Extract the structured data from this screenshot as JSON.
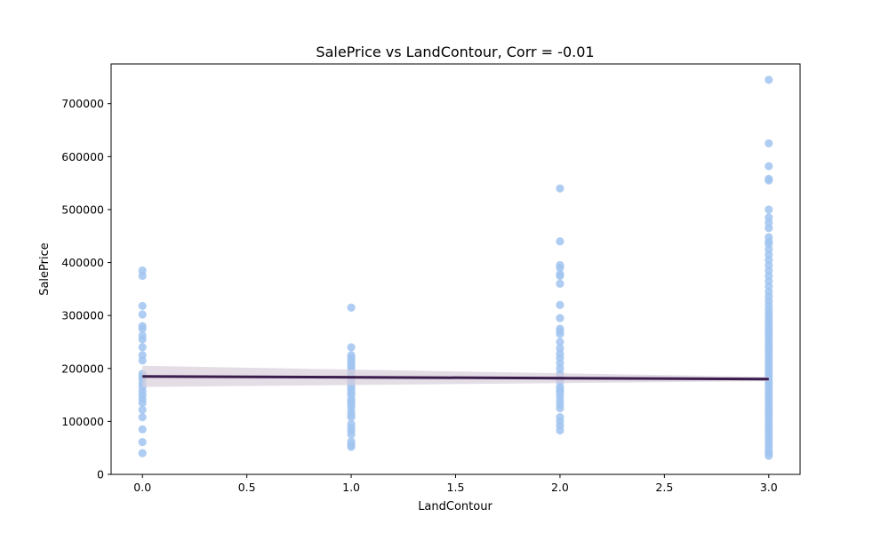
{
  "chart_data": {
    "type": "scatter",
    "title": "SalePrice vs LandContour, Corr = -0.01",
    "xlabel": "LandContour",
    "ylabel": "SalePrice",
    "xlim": [
      -0.15,
      3.15
    ],
    "ylim": [
      0,
      775000
    ],
    "xticks": [
      0.0,
      0.5,
      1.0,
      1.5,
      2.0,
      2.5,
      3.0
    ],
    "xtick_labels": [
      "0.0",
      "0.5",
      "1.0",
      "1.5",
      "2.0",
      "2.5",
      "3.0"
    ],
    "yticks": [
      0,
      100000,
      200000,
      300000,
      400000,
      500000,
      600000,
      700000
    ],
    "ytick_labels": [
      "0",
      "100000",
      "200000",
      "300000",
      "400000",
      "500000",
      "600000",
      "700000"
    ],
    "grid": false,
    "colors": {
      "points": "#a1c4f0",
      "regression_line": "#3a1c4d",
      "confidence_band": "#d9cfdc"
    },
    "series": [
      {
        "x": 0.0,
        "y": [
          40000,
          61000,
          85000,
          108000,
          122000,
          135000,
          142000,
          150000,
          157000,
          165000,
          172000,
          180000,
          185000,
          190000,
          215000,
          225000,
          240000,
          255000,
          262000,
          275000,
          280000,
          302000,
          318000,
          375000,
          385000
        ]
      },
      {
        "x": 1.0,
        "y": [
          52000,
          56000,
          62000,
          75000,
          82000,
          88000,
          95000,
          108000,
          113000,
          120000,
          128000,
          133000,
          138000,
          142000,
          150000,
          155000,
          160000,
          165000,
          170000,
          175000,
          180000,
          185000,
          190000,
          195000,
          200000,
          205000,
          210000,
          215000,
          220000,
          225000,
          240000,
          315000
        ]
      },
      {
        "x": 2.0,
        "y": [
          83000,
          92000,
          100000,
          108000,
          125000,
          132000,
          140000,
          148000,
          155000,
          160000,
          165000,
          175000,
          180000,
          185000,
          190000,
          200000,
          210000,
          220000,
          228000,
          238000,
          250000,
          265000,
          270000,
          275000,
          295000,
          320000,
          360000,
          375000,
          378000,
          390000,
          395000,
          440000,
          540000
        ]
      },
      {
        "x": 3.0,
        "y": [
          35000,
          40000,
          45000,
          52000,
          58000,
          64000,
          70000,
          76000,
          82000,
          88000,
          94000,
          100000,
          106000,
          112000,
          118000,
          124000,
          130000,
          136000,
          142000,
          148000,
          154000,
          160000,
          166000,
          172000,
          178000,
          184000,
          190000,
          196000,
          202000,
          208000,
          214000,
          220000,
          226000,
          232000,
          238000,
          244000,
          250000,
          256000,
          262000,
          268000,
          274000,
          280000,
          286000,
          292000,
          298000,
          305000,
          312000,
          320000,
          328000,
          336000,
          345000,
          355000,
          365000,
          375000,
          385000,
          395000,
          405000,
          415000,
          425000,
          435000,
          440000,
          448000,
          465000,
          475000,
          485000,
          500000,
          555000,
          558000,
          582000,
          625000,
          745000
        ]
      }
    ],
    "regression": {
      "x": [
        0.0,
        3.0
      ],
      "y": [
        185000,
        180000
      ],
      "ci_lower": [
        165000,
        176000
      ],
      "ci_upper": [
        205000,
        184000
      ]
    }
  }
}
